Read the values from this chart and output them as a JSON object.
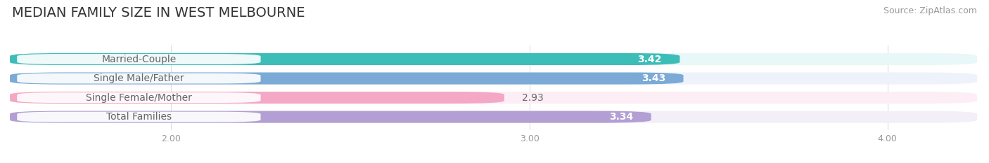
{
  "title": "MEDIAN FAMILY SIZE IN WEST MELBOURNE",
  "source": "Source: ZipAtlas.com",
  "categories": [
    "Married-Couple",
    "Single Male/Father",
    "Single Female/Mother",
    "Total Families"
  ],
  "values": [
    3.42,
    3.43,
    2.93,
    3.34
  ],
  "bar_colors": [
    "#3dbdb8",
    "#7baad6",
    "#f4a8c5",
    "#b39fd4"
  ],
  "bar_bg_colors": [
    "#e8f7f7",
    "#edf2fb",
    "#fdeef5",
    "#f2eff8"
  ],
  "label_bg_color": "#ffffff",
  "xlim_min": 1.55,
  "xlim_max": 4.25,
  "xticks": [
    2.0,
    3.0,
    4.0
  ],
  "xtick_labels": [
    "2.00",
    "3.00",
    "4.00"
  ],
  "value_inside": [
    true,
    true,
    false,
    true
  ],
  "title_fontsize": 14,
  "source_fontsize": 9,
  "label_fontsize": 10,
  "value_fontsize": 10,
  "bar_height": 0.62,
  "background_color": "#ffffff",
  "text_color_dark": "#666666",
  "text_color_light": "#ffffff",
  "grid_color": "#dddddd"
}
